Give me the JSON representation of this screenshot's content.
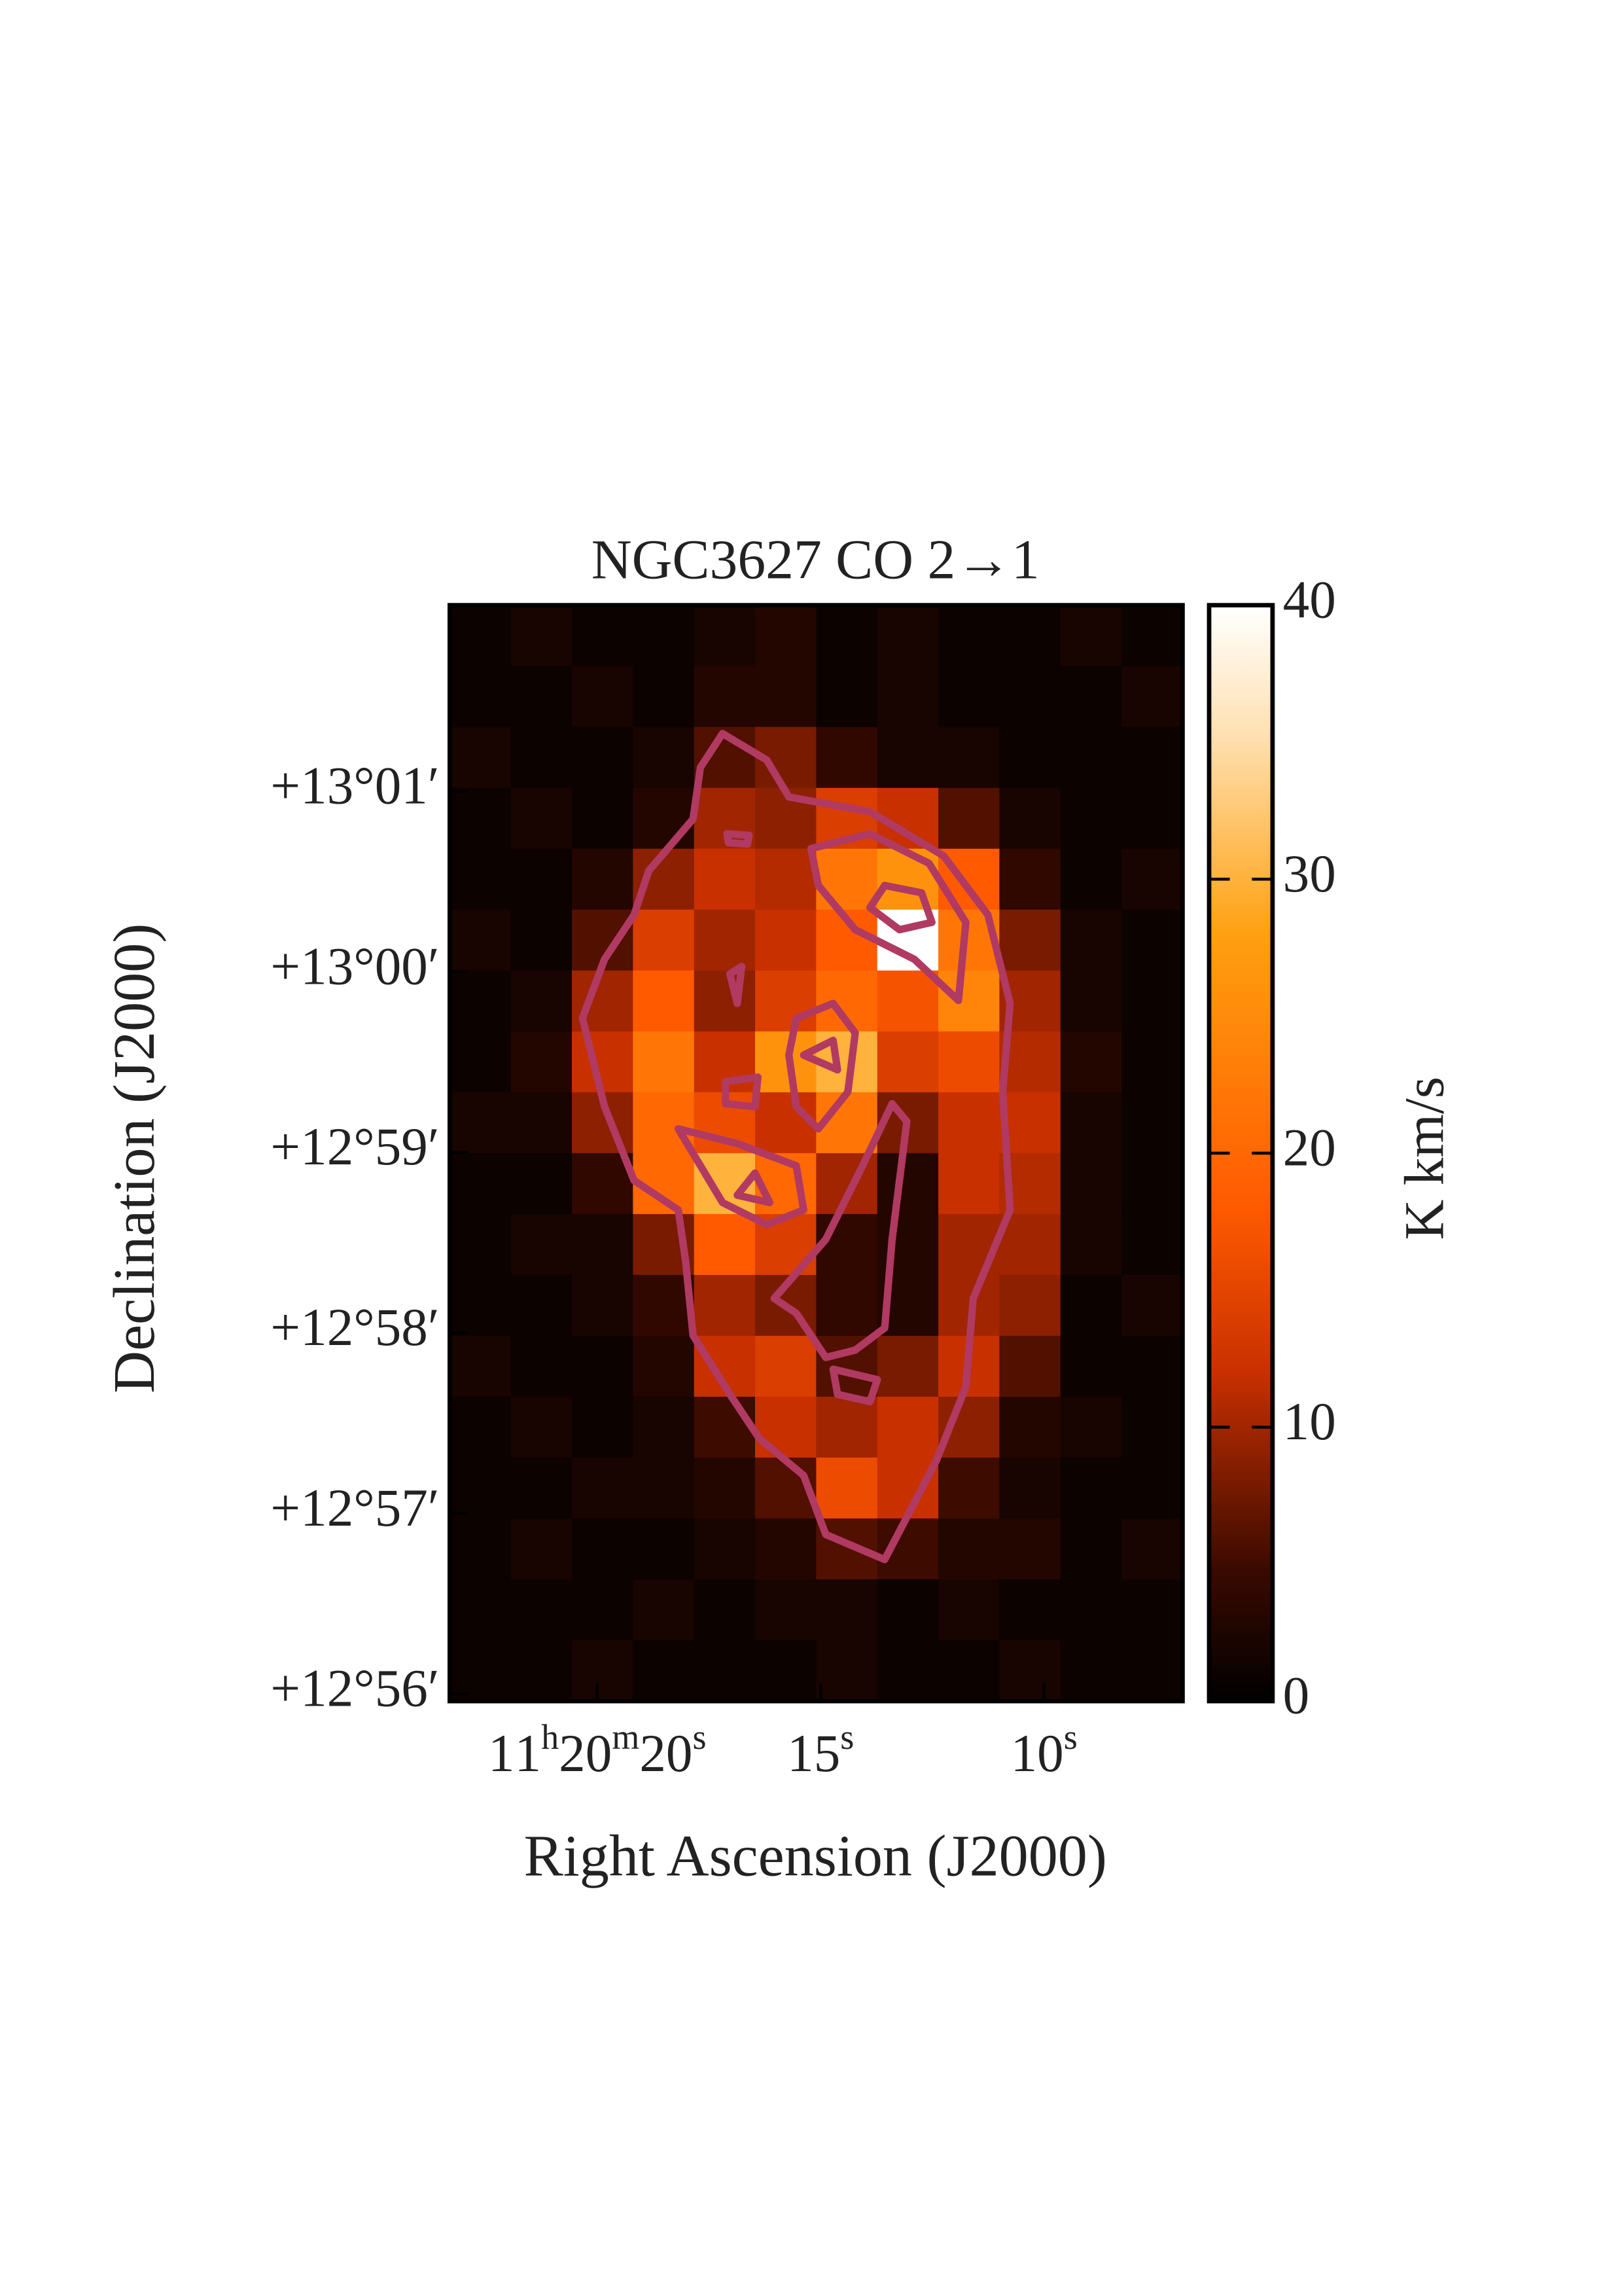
{
  "chart_data": {
    "type": "heatmap",
    "title": "NGC3627 CO 2→1",
    "x_label": "Right Ascension (J2000)",
    "y_label": "Declination (J2000)",
    "colorbar_label": "K km/s",
    "xlim": [
      23.3,
      6.9
    ],
    "ylim": [
      55.96,
      62.03
    ],
    "xticks": [
      {
        "value": 20,
        "label": "11h20m20s"
      },
      {
        "value": 15,
        "label": "15s"
      },
      {
        "value": 10,
        "label": "10s"
      }
    ],
    "yticks": [
      {
        "value": 56,
        "label": "+12°56′"
      },
      {
        "value": 57,
        "label": "+12°57′"
      },
      {
        "value": 58,
        "label": "+12°58′"
      },
      {
        "value": 59,
        "label": "+12°59′"
      },
      {
        "value": 60,
        "label": "+13°00′"
      },
      {
        "value": 61,
        "label": "+13°01′"
      }
    ],
    "clim": [
      0,
      40
    ],
    "cticks": [
      0,
      10,
      20,
      30,
      40
    ],
    "values": [
      [
        1,
        2,
        1,
        1,
        2,
        3,
        1,
        2,
        1,
        1,
        2,
        1
      ],
      [
        1,
        1,
        2,
        1,
        3,
        3,
        1,
        2,
        1,
        1,
        1,
        2
      ],
      [
        2,
        1,
        1,
        2,
        6,
        8,
        4,
        2,
        2,
        1,
        1,
        1
      ],
      [
        1,
        2,
        1,
        3,
        10,
        9,
        14,
        12,
        6,
        2,
        1,
        1
      ],
      [
        1,
        1,
        3,
        9,
        12,
        11,
        22,
        26,
        18,
        4,
        1,
        2
      ],
      [
        2,
        1,
        6,
        14,
        10,
        12,
        18,
        40,
        22,
        8,
        2,
        1
      ],
      [
        1,
        2,
        10,
        18,
        9,
        14,
        20,
        17,
        24,
        10,
        2,
        1
      ],
      [
        1,
        3,
        12,
        22,
        12,
        26,
        30,
        14,
        16,
        11,
        3,
        1
      ],
      [
        2,
        2,
        9,
        20,
        16,
        12,
        22,
        8,
        12,
        12,
        2,
        1
      ],
      [
        1,
        1,
        4,
        20,
        30,
        20,
        10,
        3,
        12,
        11,
        2,
        1
      ],
      [
        1,
        2,
        2,
        8,
        18,
        14,
        4,
        3,
        10,
        10,
        2,
        1
      ],
      [
        1,
        1,
        2,
        4,
        10,
        8,
        4,
        3,
        10,
        9,
        1,
        2
      ],
      [
        2,
        1,
        1,
        3,
        12,
        14,
        6,
        8,
        12,
        6,
        1,
        1
      ],
      [
        1,
        2,
        1,
        2,
        5,
        12,
        10,
        12,
        9,
        3,
        2,
        1
      ],
      [
        1,
        1,
        2,
        2,
        3,
        6,
        16,
        12,
        5,
        2,
        1,
        1
      ],
      [
        1,
        2,
        1,
        1,
        2,
        3,
        6,
        5,
        3,
        3,
        1,
        2
      ],
      [
        1,
        1,
        1,
        2,
        1,
        2,
        2,
        1,
        2,
        1,
        1,
        1
      ],
      [
        1,
        1,
        2,
        1,
        1,
        1,
        2,
        1,
        1,
        2,
        1,
        1
      ]
    ]
  }
}
